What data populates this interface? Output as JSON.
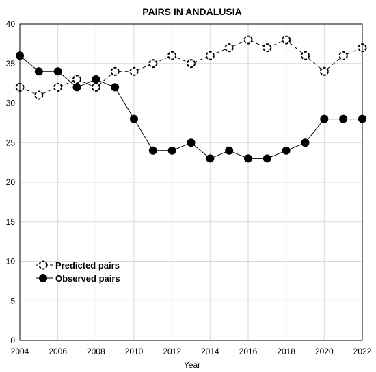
{
  "chart_data": {
    "type": "line",
    "title": "PAIRS IN ANDALUSIA",
    "xlabel": "Year",
    "ylabel": "",
    "xlim": [
      2004,
      2022
    ],
    "ylim": [
      0,
      40
    ],
    "x_ticks": [
      2004,
      2006,
      2008,
      2010,
      2012,
      2014,
      2016,
      2018,
      2020,
      2022
    ],
    "y_ticks": [
      0,
      5,
      10,
      15,
      20,
      25,
      30,
      35,
      40
    ],
    "grid": true,
    "legend_position": "bottom-left",
    "x": [
      2004,
      2005,
      2006,
      2007,
      2008,
      2009,
      2010,
      2011,
      2012,
      2013,
      2014,
      2015,
      2016,
      2017,
      2018,
      2019,
      2020,
      2021,
      2022
    ],
    "series": [
      {
        "name": "Predicted pairs",
        "style": "dashed-open-circle",
        "values": [
          32,
          31,
          32,
          33,
          32,
          34,
          34,
          35,
          36,
          35,
          36,
          37,
          38,
          37,
          38,
          36,
          34,
          36,
          37
        ]
      },
      {
        "name": "Observed pairs",
        "style": "solid-filled-circle",
        "values": [
          36,
          34,
          34,
          32,
          33,
          32,
          28,
          24,
          24,
          25,
          23,
          24,
          23,
          23,
          24,
          25,
          28,
          28,
          28
        ]
      }
    ]
  },
  "colors": {
    "line": "#000000",
    "grid": "#d9d9d9",
    "background": "#ffffff"
  }
}
